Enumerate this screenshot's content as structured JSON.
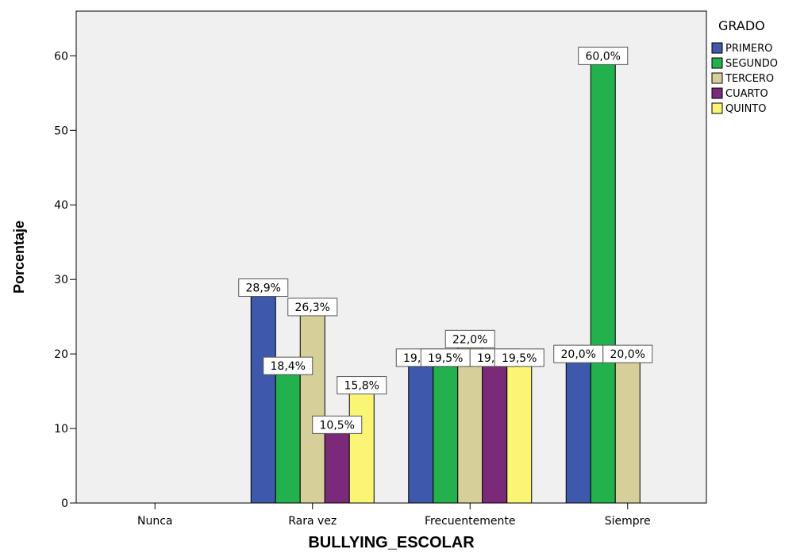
{
  "chart_data": {
    "type": "bar",
    "xlabel": "BULLYING_ESCOLAR",
    "ylabel": "Porcentaje",
    "ylim": [
      0,
      66
    ],
    "yticks": [
      0,
      10,
      20,
      30,
      40,
      50,
      60
    ],
    "categories": [
      "Nunca",
      "Rara vez",
      "Frecuentemente",
      "Siempre"
    ],
    "legend_title": "GRADO",
    "legend_position": "top-right",
    "grid": false,
    "series": [
      {
        "name": "PRIMERO",
        "color": "#3e58ac",
        "values": [
          null,
          28.9,
          19.5,
          20.0
        ],
        "labels": [
          "",
          "28,9%",
          "19,5%",
          "20,0%"
        ]
      },
      {
        "name": "SEGUNDO",
        "color": "#22b14c",
        "values": [
          null,
          18.4,
          19.5,
          60.0
        ],
        "labels": [
          "",
          "18,4%",
          "19,5%",
          "60,0%"
        ]
      },
      {
        "name": "TERCERO",
        "color": "#d6cf9a",
        "values": [
          null,
          26.3,
          22.0,
          20.0
        ],
        "labels": [
          "",
          "26,3%",
          "22,0%",
          "20,0%"
        ]
      },
      {
        "name": "CUARTO",
        "color": "#7b2a79",
        "values": [
          null,
          10.5,
          19.5,
          null
        ],
        "labels": [
          "",
          "10,5%",
          "19,5%",
          ""
        ]
      },
      {
        "name": "QUINTO",
        "color": "#fbf576",
        "values": [
          null,
          15.8,
          19.5,
          null
        ],
        "labels": [
          "",
          "15,8%",
          "19,5%",
          ""
        ]
      }
    ]
  }
}
